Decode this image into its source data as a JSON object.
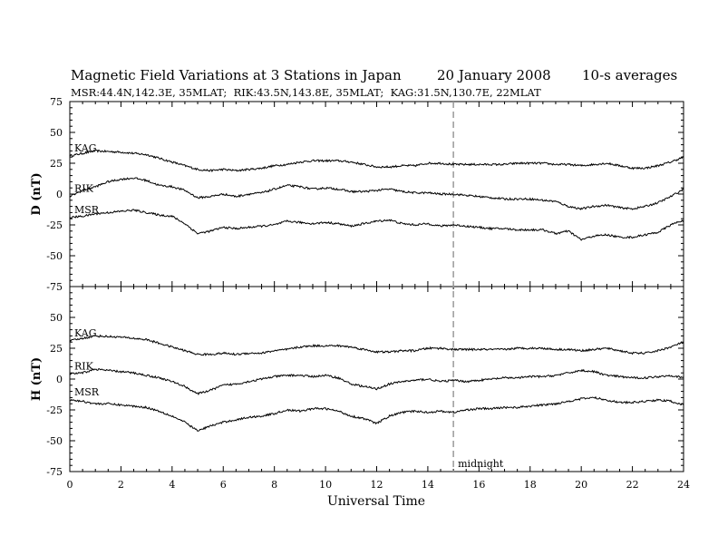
{
  "header": {
    "title": "Magnetic Field Variations at 3 Stations in Japan",
    "date": "20 January 2008",
    "averaging": "10-s averages",
    "subtitle": "MSR:44.4N,142.3E, 35MLAT;  RIK:43.5N,143.8E, 35MLAT;  KAG:31.5N,130.7E, 22MLAT"
  },
  "chart_data": [
    {
      "type": "line",
      "ylabel": "D (nT)",
      "xlabel": "",
      "xlim": [
        0,
        24
      ],
      "ylim": [
        -75,
        75
      ],
      "yticks": [
        -75,
        -50,
        -25,
        0,
        25,
        50,
        75
      ],
      "series": [
        {
          "name": "KAG",
          "x": [
            0,
            1,
            2,
            3,
            3.5,
            4,
            4.5,
            5,
            5.5,
            6,
            6.5,
            7,
            7.5,
            8,
            8.5,
            9,
            9.5,
            10,
            10.5,
            11,
            11.5,
            12,
            12.5,
            13,
            13.5,
            14,
            14.5,
            15,
            15.5,
            16,
            16.5,
            17,
            17.5,
            18,
            18.5,
            19,
            19.5,
            20,
            20.5,
            21,
            21.5,
            22,
            22.5,
            23,
            23.5,
            24
          ],
          "values": [
            31,
            35,
            34,
            32,
            29,
            26,
            23,
            20,
            19,
            20,
            19,
            20,
            21,
            23,
            24,
            26,
            27,
            27,
            27,
            26,
            24,
            22,
            22,
            23,
            23,
            25,
            25,
            24,
            24,
            24,
            24,
            24,
            25,
            25,
            25,
            24,
            24,
            23,
            24,
            25,
            23,
            21,
            21,
            23,
            26,
            30
          ]
        },
        {
          "name": "RIK",
          "x": [
            0,
            0.5,
            1,
            1.5,
            2,
            2.5,
            3,
            3.5,
            4,
            4.5,
            5,
            5.5,
            6,
            6.5,
            7,
            7.5,
            8,
            8.5,
            9,
            9.5,
            10,
            10.5,
            11,
            11.5,
            12,
            12.5,
            13,
            13.5,
            14,
            14.5,
            15,
            15.5,
            16,
            16.5,
            17,
            17.5,
            18,
            18.5,
            19,
            19.5,
            20,
            20.5,
            21,
            21.5,
            22,
            22.5,
            23,
            23.5,
            24
          ],
          "values": [
            -2,
            3,
            6,
            10,
            12,
            13,
            11,
            7,
            6,
            3,
            -3,
            -2,
            0,
            -2,
            0,
            1,
            4,
            7,
            6,
            4,
            5,
            4,
            2,
            2,
            3,
            4,
            2,
            1,
            1,
            0,
            0,
            -1,
            -2,
            -3,
            -4,
            -4,
            -4,
            -5,
            -6,
            -10,
            -12,
            -10,
            -9,
            -11,
            -12,
            -10,
            -7,
            -2,
            4
          ]
        },
        {
          "name": "MSR",
          "x": [
            0,
            0.5,
            1,
            1.5,
            2,
            2.5,
            3,
            3.5,
            4,
            4.5,
            5,
            5.5,
            6,
            6.5,
            7,
            7.5,
            8,
            8.5,
            9,
            9.5,
            10,
            10.5,
            11,
            11.5,
            12,
            12.5,
            13,
            13.5,
            14,
            14.5,
            15,
            15.5,
            16,
            16.5,
            17,
            17.5,
            18,
            18.5,
            19,
            19.5,
            20,
            20.5,
            21,
            21.5,
            22,
            22.5,
            23,
            23.5,
            24
          ],
          "values": [
            -19,
            -18,
            -16,
            -15,
            -14,
            -13,
            -15,
            -17,
            -18,
            -24,
            -32,
            -30,
            -27,
            -28,
            -27,
            -26,
            -25,
            -22,
            -23,
            -24,
            -23,
            -24,
            -26,
            -24,
            -22,
            -21,
            -24,
            -25,
            -24,
            -26,
            -25,
            -26,
            -27,
            -28,
            -28,
            -29,
            -29,
            -29,
            -32,
            -30,
            -37,
            -34,
            -33,
            -35,
            -35,
            -33,
            -31,
            -25,
            -21
          ]
        }
      ]
    },
    {
      "type": "line",
      "ylabel": "H (nT)",
      "xlabel": "Universal Time",
      "xlim": [
        0,
        24
      ],
      "ylim": [
        -75,
        75
      ],
      "xticks": [
        0,
        2,
        4,
        6,
        8,
        10,
        12,
        14,
        16,
        18,
        20,
        22,
        24
      ],
      "yticks": [
        -75,
        -50,
        -25,
        0,
        25,
        50
      ],
      "annotation": {
        "x": 15,
        "label": "midnight"
      },
      "series": [
        {
          "name": "KAG",
          "x": [
            0,
            1,
            2,
            3,
            3.5,
            4,
            4.5,
            5,
            5.5,
            6,
            6.5,
            7,
            7.5,
            8,
            8.5,
            9,
            9.5,
            10,
            10.5,
            11,
            11.5,
            12,
            12.5,
            13,
            13.5,
            14,
            14.5,
            15,
            15.5,
            16,
            16.5,
            17,
            17.5,
            18,
            18.5,
            19,
            19.5,
            20,
            20.5,
            21,
            21.5,
            22,
            22.5,
            23,
            23.5,
            24
          ],
          "values": [
            31,
            35,
            34,
            32,
            29,
            26,
            23,
            20,
            20,
            21,
            20,
            21,
            21,
            23,
            24,
            26,
            27,
            27,
            27,
            26,
            24,
            22,
            22,
            23,
            23,
            25,
            25,
            24,
            24,
            24,
            24,
            24,
            25,
            25,
            25,
            24,
            24,
            23,
            24,
            25,
            23,
            21,
            21,
            23,
            26,
            30
          ]
        },
        {
          "name": "RIK",
          "x": [
            0,
            0.5,
            1,
            1.5,
            2,
            2.5,
            3,
            3.5,
            4,
            4.5,
            5,
            5.5,
            6,
            6.5,
            7,
            7.5,
            8,
            8.5,
            9,
            9.5,
            10,
            10.5,
            11,
            11.5,
            12,
            12.5,
            13,
            13.5,
            14,
            14.5,
            15,
            15.5,
            16,
            16.5,
            17,
            17.5,
            18,
            18.5,
            19,
            19.5,
            20,
            20.5,
            21,
            21.5,
            22,
            22.5,
            23,
            23.5,
            24
          ],
          "values": [
            4,
            5,
            8,
            7,
            6,
            5,
            3,
            1,
            -2,
            -6,
            -12,
            -9,
            -5,
            -4,
            -2,
            0,
            2,
            3,
            3,
            2,
            3,
            1,
            -4,
            -6,
            -8,
            -4,
            -2,
            -1,
            0,
            -2,
            -1,
            -2,
            -1,
            0,
            1,
            1,
            2,
            2,
            3,
            5,
            7,
            6,
            3,
            2,
            1,
            1,
            2,
            3,
            1
          ]
        },
        {
          "name": "MSR",
          "x": [
            0,
            0.5,
            1,
            1.5,
            2,
            2.5,
            3,
            3.5,
            4,
            4.5,
            5,
            5.5,
            6,
            6.5,
            7,
            7.5,
            8,
            8.5,
            9,
            9.5,
            10,
            10.5,
            11,
            11.5,
            12,
            12.5,
            13,
            13.5,
            14,
            14.5,
            15,
            15.5,
            16,
            16.5,
            17,
            17.5,
            18,
            18.5,
            19,
            19.5,
            20,
            20.5,
            21,
            21.5,
            22,
            22.5,
            23,
            23.5,
            24
          ],
          "values": [
            -17,
            -18,
            -20,
            -20,
            -21,
            -22,
            -23,
            -26,
            -30,
            -35,
            -42,
            -38,
            -35,
            -33,
            -31,
            -30,
            -28,
            -25,
            -26,
            -24,
            -24,
            -26,
            -30,
            -32,
            -36,
            -30,
            -27,
            -26,
            -27,
            -26,
            -27,
            -25,
            -24,
            -24,
            -23,
            -23,
            -22,
            -21,
            -20,
            -18,
            -16,
            -15,
            -17,
            -19,
            -19,
            -18,
            -17,
            -18,
            -21
          ]
        }
      ]
    }
  ]
}
